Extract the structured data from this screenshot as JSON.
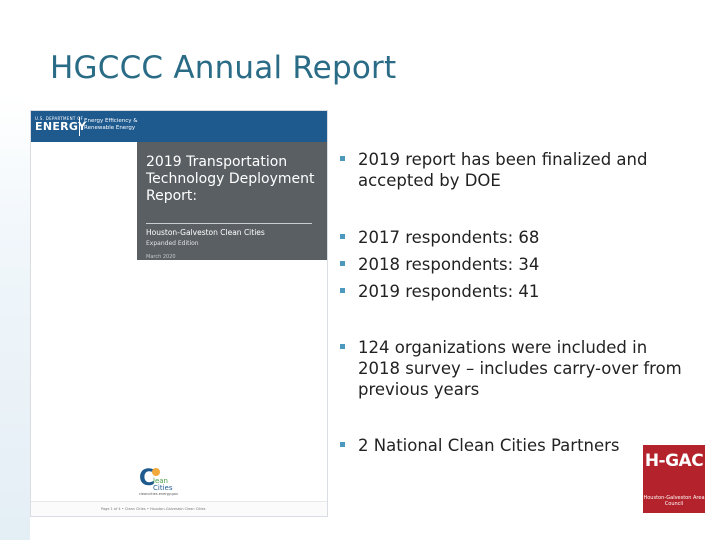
{
  "slide": {
    "title": "HGCCC Annual Report"
  },
  "cover": {
    "agency_small": "U.S. DEPARTMENT OF",
    "agency_big": "ENERGY",
    "office_line1": "Energy Efficiency &",
    "office_line2": "Renewable Energy",
    "title": "2019 Transportation Technology Deployment Report:",
    "subtitle": "Houston-Galveston Clean Cities",
    "edition": "Expanded Edition",
    "date": "March 2020",
    "program_logo_text": "Clean Cities",
    "program_url": "cleancities.energy.gov",
    "footer": "Page 1 of 4  •  Clean Cities  •  Houston-Galveston Clean Cities",
    "colors": {
      "top_bar": "#1f5a8f",
      "title_box": "#5a5f63"
    }
  },
  "bullets": [
    "2019 report has been finalized and accepted by DOE",
    "2017 respondents: 68",
    "2018 respondents: 34",
    "2019 respondents: 41",
    "124 organizations were included in 2018 survey – includes carry-over from previous years",
    "2 National Clean Cities Partners"
  ],
  "org_logo": {
    "mark": "H-GAC",
    "name": "Houston-Galveston Area Council",
    "color": "#b4232b"
  },
  "theme": {
    "title_color": "#2a6b86",
    "bullet_color": "#4d98bd"
  }
}
